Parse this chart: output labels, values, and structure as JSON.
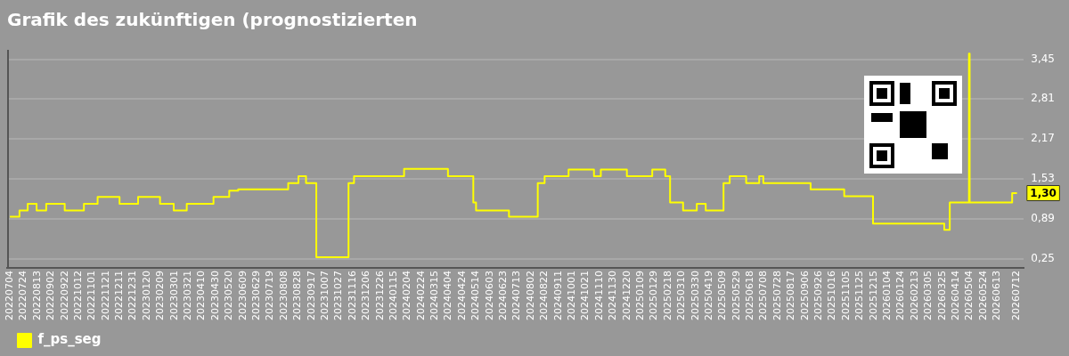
{
  "chart_data": {
    "type": "step",
    "title": "Grafik des zukünftigen (prognostizierten",
    "x": [
      "2022-07-04",
      "2022-07-18",
      "2022-07-30",
      "2022-08-12",
      "2022-08-26",
      "2022-09-22",
      "2022-10-20",
      "2022-11-09",
      "2022-12-11",
      "2023-01-07",
      "2023-02-08",
      "2023-02-28",
      "2023-03-19",
      "2023-04-27",
      "2023-05-20",
      "2023-06-02",
      "2023-08-14",
      "2023-08-29",
      "2023-09-09",
      "2023-09-24",
      "2023-11-10",
      "2023-11-18",
      "2024-01-30",
      "2024-04-03",
      "2024-05-10",
      "2024-05-14",
      "2024-07-01",
      "2024-08-12",
      "2024-08-22",
      "2024-09-26",
      "2024-11-02",
      "2024-11-12",
      "2024-12-20",
      "2025-01-26",
      "2025-02-14",
      "2025-02-21",
      "2025-03-12",
      "2025-04-01",
      "2025-04-14",
      "2025-05-10",
      "2025-05-19",
      "2025-06-12",
      "2025-07-01",
      "2025-07-07",
      "2025-09-14",
      "2025-11-02",
      "2025-12-14",
      "2026-03-28",
      "2026-04-05",
      "2026-05-03",
      "2026-05-04",
      "2026-07-05",
      "2026-07-12"
    ],
    "series": [
      {
        "name": "f_ps_seg",
        "color": "#ffff00",
        "values": [
          0.92,
          1.02,
          1.13,
          1.02,
          1.13,
          1.02,
          1.13,
          1.24,
          1.13,
          1.24,
          1.13,
          1.02,
          1.13,
          1.24,
          1.34,
          1.36,
          1.46,
          1.57,
          1.46,
          0.27,
          1.46,
          1.57,
          1.69,
          1.57,
          1.15,
          1.02,
          0.92,
          1.46,
          1.57,
          1.68,
          1.57,
          1.68,
          1.57,
          1.68,
          1.57,
          1.15,
          1.02,
          1.13,
          1.02,
          1.46,
          1.57,
          1.46,
          1.57,
          1.46,
          1.36,
          1.25,
          0.81,
          0.71,
          1.15,
          3.54,
          1.15,
          1.3,
          1.3
        ]
      }
    ],
    "xlim": [
      "2022-06-30",
      "2026-07-22"
    ],
    "xticks": [
      {
        "value": "2022-07-04",
        "label": "20220704"
      },
      {
        "value": "2022-07-24",
        "label": "20220724"
      },
      {
        "value": "2022-08-13",
        "label": "20220813"
      },
      {
        "value": "2022-09-02",
        "label": "20220902"
      },
      {
        "value": "2022-09-22",
        "label": "20220922"
      },
      {
        "value": "2022-10-12",
        "label": "20221012"
      },
      {
        "value": "2022-11-01",
        "label": "20221101"
      },
      {
        "value": "2022-11-21",
        "label": "20221121"
      },
      {
        "value": "2022-12-11",
        "label": "20221211"
      },
      {
        "value": "2022-12-31",
        "label": "20221231"
      },
      {
        "value": "2023-01-20",
        "label": "20230120"
      },
      {
        "value": "2023-02-09",
        "label": "20230209"
      },
      {
        "value": "2023-03-01",
        "label": "20230301"
      },
      {
        "value": "2023-03-21",
        "label": "20230321"
      },
      {
        "value": "2023-04-10",
        "label": "20230410"
      },
      {
        "value": "2023-04-30",
        "label": "20230430"
      },
      {
        "value": "2023-05-20",
        "label": "20230520"
      },
      {
        "value": "2023-06-09",
        "label": "20230609"
      },
      {
        "value": "2023-06-29",
        "label": "20230629"
      },
      {
        "value": "2023-07-19",
        "label": "20230719"
      },
      {
        "value": "2023-08-08",
        "label": "20230808"
      },
      {
        "value": "2023-08-28",
        "label": "20230828"
      },
      {
        "value": "2023-09-17",
        "label": "20230917"
      },
      {
        "value": "2023-10-07",
        "label": "20231007"
      },
      {
        "value": "2023-10-27",
        "label": "20231027"
      },
      {
        "value": "2023-11-16",
        "label": "20231116"
      },
      {
        "value": "2023-12-06",
        "label": "20231206"
      },
      {
        "value": "2023-12-26",
        "label": "20231226"
      },
      {
        "value": "2024-01-15",
        "label": "20240115"
      },
      {
        "value": "2024-02-04",
        "label": "20240204"
      },
      {
        "value": "2024-02-24",
        "label": "20240224"
      },
      {
        "value": "2024-03-15",
        "label": "20240315"
      },
      {
        "value": "2024-04-04",
        "label": "20240404"
      },
      {
        "value": "2024-04-24",
        "label": "20240424"
      },
      {
        "value": "2024-05-14",
        "label": "20240514"
      },
      {
        "value": "2024-06-03",
        "label": "20240603"
      },
      {
        "value": "2024-06-23",
        "label": "20240623"
      },
      {
        "value": "2024-07-13",
        "label": "20240713"
      },
      {
        "value": "2024-08-02",
        "label": "20240802"
      },
      {
        "value": "2024-08-22",
        "label": "20240822"
      },
      {
        "value": "2024-09-11",
        "label": "20240911"
      },
      {
        "value": "2024-10-01",
        "label": "20241001"
      },
      {
        "value": "2024-10-21",
        "label": "20241021"
      },
      {
        "value": "2024-11-10",
        "label": "20241110"
      },
      {
        "value": "2024-11-30",
        "label": "20241130"
      },
      {
        "value": "2024-12-20",
        "label": "20241220"
      },
      {
        "value": "2025-01-09",
        "label": "20250109"
      },
      {
        "value": "2025-01-29",
        "label": "20250129"
      },
      {
        "value": "2025-02-18",
        "label": "20250218"
      },
      {
        "value": "2025-03-10",
        "label": "20250310"
      },
      {
        "value": "2025-03-30",
        "label": "20250330"
      },
      {
        "value": "2025-04-19",
        "label": "20250419"
      },
      {
        "value": "2025-05-09",
        "label": "20250509"
      },
      {
        "value": "2025-05-29",
        "label": "20250529"
      },
      {
        "value": "2025-06-18",
        "label": "20250618"
      },
      {
        "value": "2025-07-08",
        "label": "20250708"
      },
      {
        "value": "2025-07-28",
        "label": "20250728"
      },
      {
        "value": "2025-08-17",
        "label": "20250817"
      },
      {
        "value": "2025-09-06",
        "label": "20250906"
      },
      {
        "value": "2025-09-26",
        "label": "20250926"
      },
      {
        "value": "2025-10-16",
        "label": "20251016"
      },
      {
        "value": "2025-11-05",
        "label": "20251105"
      },
      {
        "value": "2025-11-25",
        "label": "20251125"
      },
      {
        "value": "2025-12-15",
        "label": "20251215"
      },
      {
        "value": "2026-01-04",
        "label": "20260104"
      },
      {
        "value": "2026-01-24",
        "label": "20260124"
      },
      {
        "value": "2026-02-13",
        "label": "20260213"
      },
      {
        "value": "2026-03-05",
        "label": "20260305"
      },
      {
        "value": "2026-03-25",
        "label": "20260325"
      },
      {
        "value": "2026-04-14",
        "label": "20260414"
      },
      {
        "value": "2026-05-04",
        "label": "20260504"
      },
      {
        "value": "2026-05-24",
        "label": "20260524"
      },
      {
        "value": "2026-06-13",
        "label": "20260613"
      },
      {
        "value": "2026-07-12",
        "label": "20260712"
      }
    ],
    "ylim": [
      0.1,
      3.6
    ],
    "yticks": [
      {
        "value": 0.25,
        "label": "0,25"
      },
      {
        "value": 0.89,
        "label": "0,89"
      },
      {
        "value": 1.53,
        "label": "1,53"
      },
      {
        "value": 2.17,
        "label": "2,17"
      },
      {
        "value": 2.81,
        "label": "2,81"
      },
      {
        "value": 3.45,
        "label": "3,45"
      }
    ],
    "annotations": [
      {
        "text": "1,30",
        "x": "2026-07-12",
        "y": 1.3
      }
    ],
    "grid": "y",
    "legend": "bottom left",
    "marker": "none",
    "line_style": "solid"
  }
}
